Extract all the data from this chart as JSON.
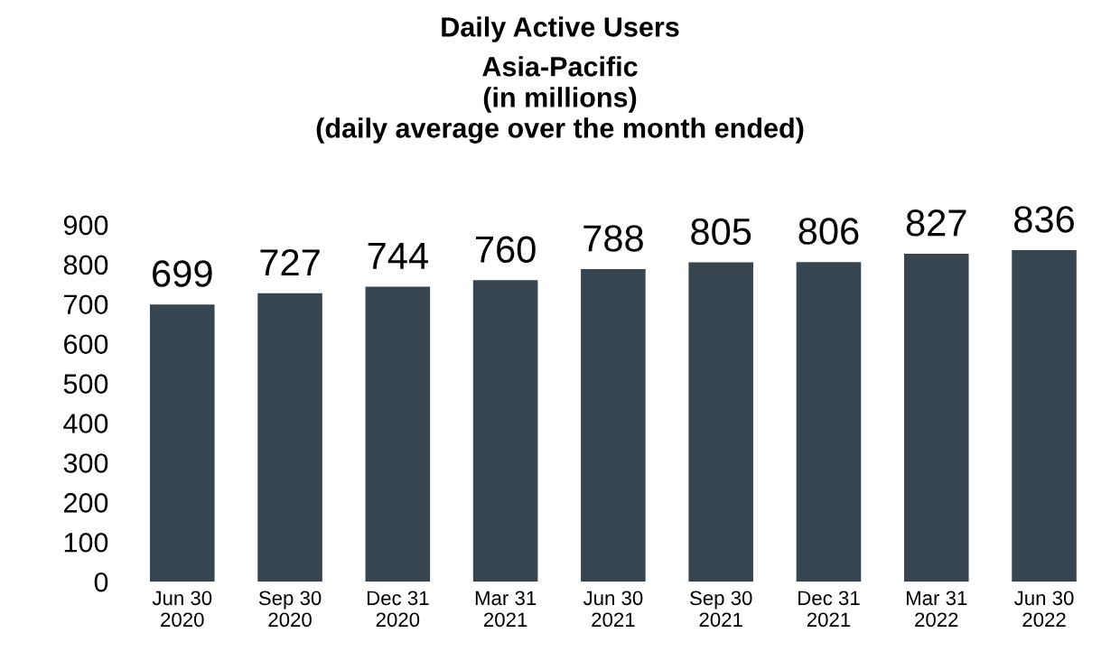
{
  "chart_data": {
    "type": "bar",
    "title": "Daily Active Users",
    "subtitle": "Asia-Pacific\n(in millions)\n(daily average over the month ended)",
    "categories": [
      "Jun 30\n2020",
      "Sep 30\n2020",
      "Dec 31\n2020",
      "Mar 31\n2021",
      "Jun 30\n2021",
      "Sep 30\n2021",
      "Dec 31\n2021",
      "Mar 31\n2022",
      "Jun 30\n2022"
    ],
    "values": [
      699,
      727,
      744,
      760,
      788,
      805,
      806,
      827,
      836
    ],
    "color": "#36454f",
    "ylim": [
      0,
      900
    ],
    "yticks": [
      0,
      100,
      200,
      300,
      400,
      500,
      600,
      700,
      800,
      900
    ],
    "grid": false,
    "data_labels": true
  }
}
